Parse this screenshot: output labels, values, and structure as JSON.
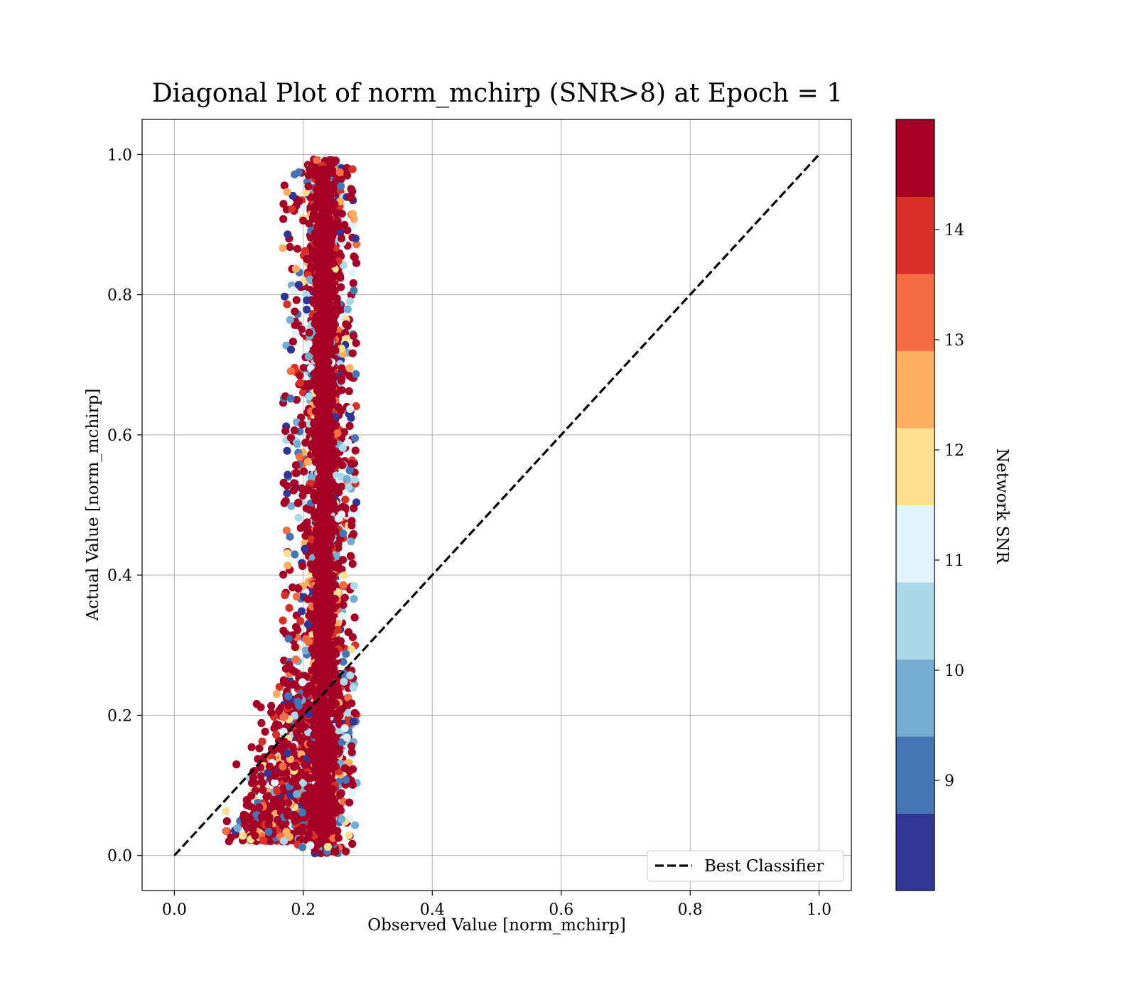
{
  "chart_data": {
    "type": "scatter",
    "title": "Diagonal Plot of norm_mchirp (SNR>8) at Epoch = 1",
    "xlabel": "Observed Value [norm_mchirp]",
    "ylabel": "Actual Value [norm_mchirp]",
    "xlim": [
      -0.05,
      1.05
    ],
    "ylim": [
      -0.05,
      1.05
    ],
    "xticks": [
      "0.0",
      "0.2",
      "0.4",
      "0.6",
      "0.8",
      "1.0"
    ],
    "yticks": [
      "0.0",
      "0.2",
      "0.4",
      "0.6",
      "0.8",
      "1.0"
    ],
    "grid": true,
    "legend_position": "lower-right",
    "reference_line": {
      "name": "Best Classifier",
      "x": [
        0.0,
        1.0
      ],
      "y": [
        0.0,
        1.0
      ],
      "style": "dashed",
      "color": "#000000"
    },
    "colorbar": {
      "label": "Network SNR",
      "range": [
        8.0,
        15.0
      ],
      "ticks": [
        "9",
        "10",
        "11",
        "12",
        "13",
        "14"
      ],
      "bands": [
        "#313695",
        "#4575b4",
        "#74add1",
        "#abd9e9",
        "#e0f3f8",
        "#fee090",
        "#fdae61",
        "#f46d43",
        "#d73027",
        "#a50026"
      ]
    },
    "scatter_summary": {
      "column_x_range": [
        0.2,
        0.27
      ],
      "column_y_range": [
        0.0,
        1.0
      ],
      "low_tail_x_range": [
        0.08,
        0.2
      ],
      "low_tail_y_range": [
        0.02,
        0.25
      ],
      "dominant_snr": "above 14"
    }
  }
}
